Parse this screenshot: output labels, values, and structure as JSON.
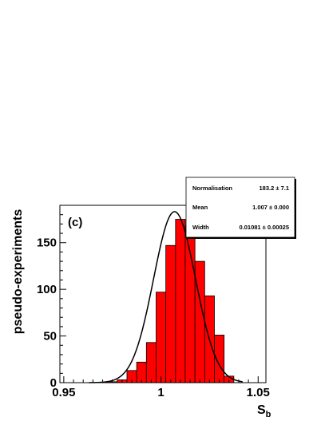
{
  "chart_data": {
    "type": "bar",
    "panel_label": "(c)",
    "xlabel_main": "S",
    "xlabel_sub": "b",
    "ylabel": "pseudo-experiments",
    "xlim": [
      0.948,
      1.054
    ],
    "ylim": [
      0,
      190
    ],
    "x_ticks": [
      0.95,
      1.0,
      1.05
    ],
    "x_tick_labels": [
      "0.95",
      "1",
      "1.05"
    ],
    "y_ticks": [
      0,
      50,
      100,
      150
    ],
    "y_tick_labels": [
      "0",
      "50",
      "100",
      "150"
    ],
    "bin_width": 0.005,
    "bin_edges": [
      0.9725,
      0.9775,
      0.9825,
      0.9875,
      0.9925,
      0.9975,
      1.0025,
      1.0075,
      1.0125,
      1.0175,
      1.0225,
      1.0275,
      1.0325,
      1.0375
    ],
    "counts": [
      1,
      3,
      13,
      22,
      43,
      97,
      147,
      175,
      168,
      130,
      93,
      51,
      7
    ],
    "fill_color": "#ff0000",
    "fit": {
      "type": "gaussian",
      "normalisation": 183.2,
      "mean": 1.007,
      "width": 0.01081,
      "color": "#000000"
    },
    "stats_box": {
      "rows": [
        {
          "label": "Normalisation",
          "value": "183.2 ± 7.1"
        },
        {
          "label": "Mean",
          "value": "1.007 ± 0.000"
        },
        {
          "label": "Width",
          "value": "0.01081 ± 0.00025"
        }
      ]
    }
  }
}
